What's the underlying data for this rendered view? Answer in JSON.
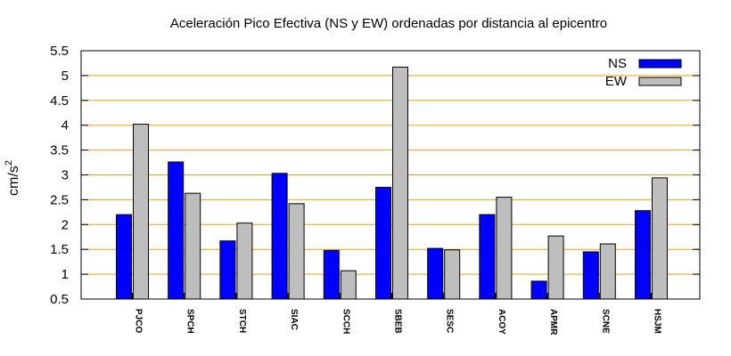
{
  "chart_data": {
    "type": "bar",
    "title": "Aceleración Pico Efectiva (NS y EW) ordenadas por distancia al epicentro",
    "ylabel": "cm/s",
    "ylabel_superscript": "2",
    "xlabel": "",
    "ylim": [
      0.5,
      5.5
    ],
    "yticks": [
      "0.5",
      "1",
      "1.5",
      "2",
      "2.5",
      "3",
      "3.5",
      "4",
      "4.5",
      "5",
      "5.5"
    ],
    "grid": "horizontal",
    "grid_color": "#e3a317",
    "legend_position": "top-right",
    "categories": [
      "PJCO",
      "SPCH",
      "STCH",
      "SIAC",
      "SCCH",
      "SBEB",
      "SESC",
      "ACOY",
      "APMR",
      "SCNE",
      "HSJM"
    ],
    "series": [
      {
        "name": "NS",
        "color": "#0000ff",
        "values": [
          2.2,
          3.26,
          1.67,
          3.03,
          1.48,
          2.75,
          1.52,
          2.2,
          0.86,
          1.45,
          2.28
        ]
      },
      {
        "name": "EW",
        "color": "#bebebe",
        "values": [
          4.02,
          2.63,
          2.03,
          2.42,
          1.07,
          5.17,
          1.49,
          2.55,
          1.77,
          1.61,
          2.94
        ]
      }
    ]
  }
}
